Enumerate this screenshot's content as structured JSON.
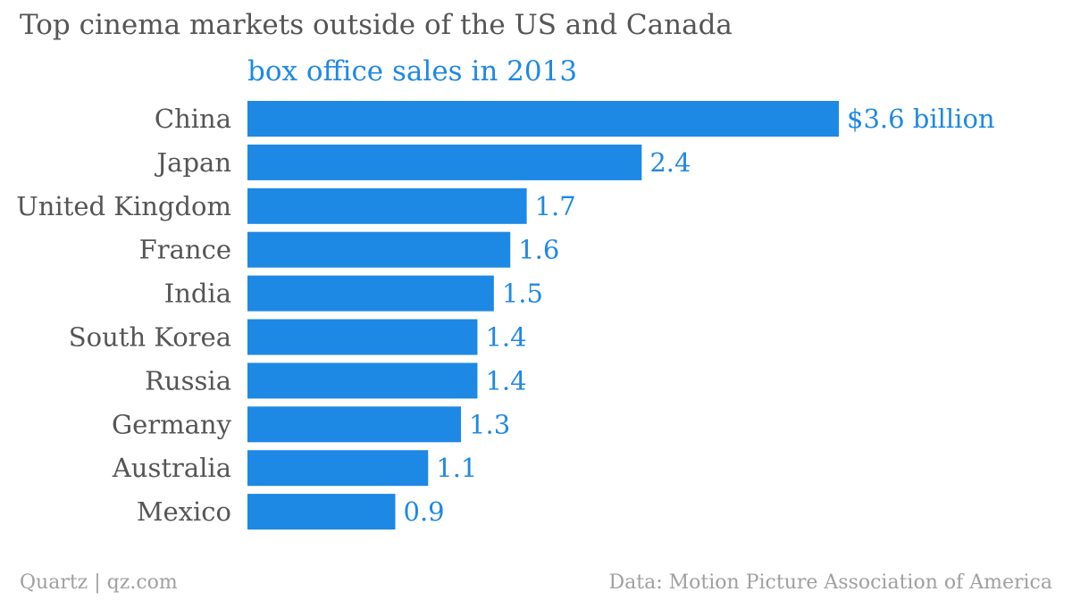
{
  "chart_data": {
    "type": "bar",
    "orientation": "horizontal",
    "title": "Top cinema markets outside of the US and Canada",
    "subtitle": "box office sales in 2013",
    "categories": [
      "China",
      "Japan",
      "United Kingdom",
      "France",
      "India",
      "South Korea",
      "Russia",
      "Germany",
      "Australia",
      "Mexico"
    ],
    "values": [
      3.6,
      2.4,
      1.7,
      1.6,
      1.5,
      1.4,
      1.4,
      1.3,
      1.1,
      0.9
    ],
    "value_labels": [
      "$3.6 billion",
      "2.4",
      "1.7",
      "1.6",
      "1.5",
      "1.4",
      "1.4",
      "1.3",
      "1.1",
      "0.9"
    ],
    "xlim": [
      0,
      3.6
    ],
    "grid": false,
    "bar_color": "#1e88e5"
  },
  "footer": {
    "source_left": "Quartz | qz.com",
    "source_right": "Data: Motion Picture Association of America"
  }
}
